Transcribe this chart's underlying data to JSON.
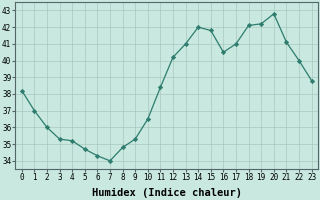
{
  "x": [
    0,
    1,
    2,
    3,
    4,
    5,
    6,
    7,
    8,
    9,
    10,
    11,
    12,
    13,
    14,
    15,
    16,
    17,
    18,
    19,
    20,
    21,
    22,
    23
  ],
  "y": [
    38.2,
    37.0,
    36.0,
    35.3,
    35.2,
    34.7,
    34.3,
    34.0,
    34.8,
    35.3,
    36.5,
    38.4,
    40.2,
    41.0,
    42.0,
    41.8,
    40.5,
    41.0,
    42.1,
    42.2,
    42.8,
    41.1,
    40.0,
    38.8
  ],
  "line_color": "#2e7d6e",
  "marker": "D",
  "marker_size": 2.2,
  "bg_color": "#c8e8e0",
  "grid_color": "#a8c8c0",
  "xlabel": "Humidex (Indice chaleur)",
  "ylim": [
    33.5,
    43.5
  ],
  "xlim": [
    -0.5,
    23.5
  ],
  "yticks": [
    34,
    35,
    36,
    37,
    38,
    39,
    40,
    41,
    42,
    43
  ],
  "xticks": [
    0,
    1,
    2,
    3,
    4,
    5,
    6,
    7,
    8,
    9,
    10,
    11,
    12,
    13,
    14,
    15,
    16,
    17,
    18,
    19,
    20,
    21,
    22,
    23
  ],
  "tick_fontsize": 5.5,
  "xlabel_fontsize": 7.5,
  "linewidth": 0.9
}
